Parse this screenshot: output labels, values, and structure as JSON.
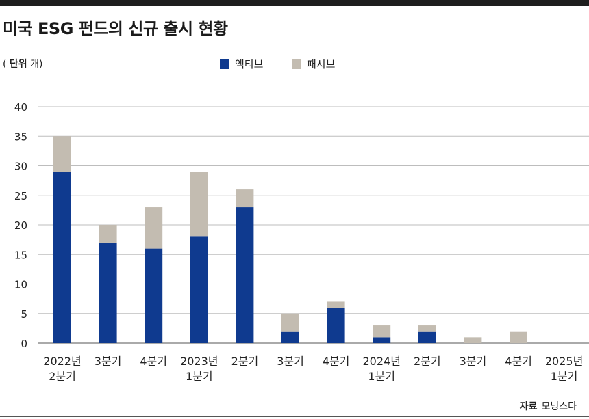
{
  "title": "미국 ESG 펀드의 신규 출시 현황",
  "unit": {
    "prefix": "( ",
    "label": "단위",
    "value": " 개)"
  },
  "source": {
    "label": "자료",
    "value": "모닝스타"
  },
  "chart_data": {
    "type": "bar",
    "stacked": true,
    "categories": [
      [
        "2022년",
        "2분기"
      ],
      [
        "3분기"
      ],
      [
        "4분기"
      ],
      [
        "2023년",
        "1분기"
      ],
      [
        "2분기"
      ],
      [
        "3분기"
      ],
      [
        "4분기"
      ],
      [
        "2024년",
        "1분기"
      ],
      [
        "2분기"
      ],
      [
        "3분기"
      ],
      [
        "4분기"
      ],
      [
        "2025년",
        "1분기"
      ]
    ],
    "series": [
      {
        "name": "액티브",
        "color": "#0f3a8f",
        "values": [
          29,
          17,
          16,
          18,
          23,
          2,
          6,
          1,
          2,
          0,
          0,
          0
        ]
      },
      {
        "name": "패시브",
        "color": "#c3bcb1",
        "values": [
          6,
          3,
          7,
          11,
          3,
          3,
          1,
          2,
          1,
          1,
          2,
          0
        ]
      }
    ],
    "ylim": [
      0,
      40
    ],
    "yticks": [
      0,
      5,
      10,
      15,
      20,
      25,
      30,
      35,
      40
    ],
    "grid": true,
    "legend_position": "top-center"
  }
}
